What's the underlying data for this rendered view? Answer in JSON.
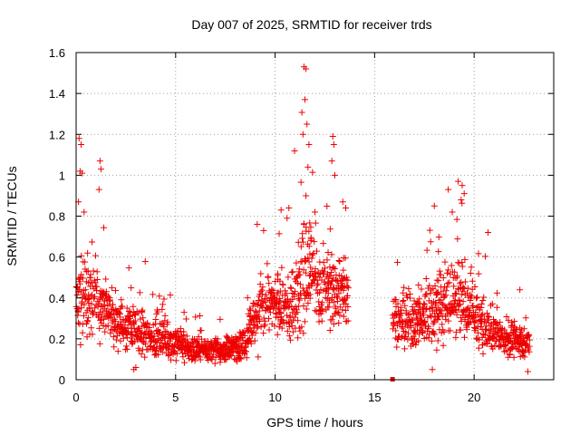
{
  "chart_data": {
    "type": "scatter",
    "title": "Day 007 of 2025, SRMTID for receiver trds",
    "xlabel": "GPS time / hours",
    "ylabel": "SRMTID / TECUs",
    "xlim": [
      0,
      24
    ],
    "ylim": [
      0,
      1.6
    ],
    "xticks": [
      0,
      5,
      10,
      15,
      20
    ],
    "xtick_labels": [
      "0",
      "5",
      "10",
      "15",
      "20"
    ],
    "yticks": [
      0,
      0.2,
      0.4,
      0.6,
      0.8,
      1,
      1.2,
      1.4,
      1.6
    ],
    "ytick_labels": [
      "0",
      "0.2",
      "0.4",
      "0.6",
      "0.8",
      "1",
      "1.2",
      "1.4",
      "1.6"
    ],
    "grid": true,
    "marker": "plus",
    "series_color": "#ee0000",
    "data_gap_hours": [
      13.7,
      15.9
    ],
    "envelope": [
      {
        "t": 0.0,
        "median": 0.4,
        "spread": 0.16
      },
      {
        "t": 0.3,
        "median": 0.45,
        "spread": 0.2
      },
      {
        "t": 0.8,
        "median": 0.4,
        "spread": 0.15
      },
      {
        "t": 1.5,
        "median": 0.33,
        "spread": 0.12
      },
      {
        "t": 2.5,
        "median": 0.25,
        "spread": 0.1
      },
      {
        "t": 3.5,
        "median": 0.22,
        "spread": 0.09
      },
      {
        "t": 4.5,
        "median": 0.2,
        "spread": 0.09
      },
      {
        "t": 5.5,
        "median": 0.15,
        "spread": 0.06
      },
      {
        "t": 6.5,
        "median": 0.15,
        "spread": 0.05
      },
      {
        "t": 7.5,
        "median": 0.14,
        "spread": 0.05
      },
      {
        "t": 8.5,
        "median": 0.18,
        "spread": 0.06
      },
      {
        "t": 9.2,
        "median": 0.35,
        "spread": 0.15
      },
      {
        "t": 10.0,
        "median": 0.38,
        "spread": 0.15
      },
      {
        "t": 10.8,
        "median": 0.3,
        "spread": 0.14
      },
      {
        "t": 11.5,
        "median": 0.55,
        "spread": 0.28
      },
      {
        "t": 12.2,
        "median": 0.45,
        "spread": 0.16
      },
      {
        "t": 13.0,
        "median": 0.4,
        "spread": 0.16
      },
      {
        "t": 13.7,
        "median": 0.45,
        "spread": 0.18
      },
      {
        "t": 15.9,
        "median": 0.3,
        "spread": 0.1
      },
      {
        "t": 17.0,
        "median": 0.28,
        "spread": 0.12
      },
      {
        "t": 18.2,
        "median": 0.35,
        "spread": 0.15
      },
      {
        "t": 19.2,
        "median": 0.4,
        "spread": 0.18
      },
      {
        "t": 20.5,
        "median": 0.25,
        "spread": 0.1
      },
      {
        "t": 21.5,
        "median": 0.2,
        "spread": 0.07
      },
      {
        "t": 22.8,
        "median": 0.18,
        "spread": 0.06
      }
    ],
    "outliers": [
      {
        "x": 0.15,
        "y": 1.18
      },
      {
        "x": 0.25,
        "y": 1.15
      },
      {
        "x": 0.2,
        "y": 1.02
      },
      {
        "x": 0.3,
        "y": 1.01
      },
      {
        "x": 0.12,
        "y": 0.87
      },
      {
        "x": 1.2,
        "y": 1.07
      },
      {
        "x": 1.25,
        "y": 1.03
      },
      {
        "x": 1.15,
        "y": 0.93
      },
      {
        "x": 0.4,
        "y": 0.82
      },
      {
        "x": 9.1,
        "y": 0.76
      },
      {
        "x": 10.3,
        "y": 0.83
      },
      {
        "x": 10.6,
        "y": 0.79
      },
      {
        "x": 11.45,
        "y": 1.53
      },
      {
        "x": 11.55,
        "y": 1.52
      },
      {
        "x": 11.5,
        "y": 1.37
      },
      {
        "x": 11.6,
        "y": 1.25
      },
      {
        "x": 11.4,
        "y": 1.2
      },
      {
        "x": 11.7,
        "y": 1.15
      },
      {
        "x": 11.65,
        "y": 1.04
      },
      {
        "x": 11.55,
        "y": 0.9
      },
      {
        "x": 12.0,
        "y": 0.82
      },
      {
        "x": 12.9,
        "y": 1.19
      },
      {
        "x": 12.95,
        "y": 1.15
      },
      {
        "x": 12.85,
        "y": 1.07
      },
      {
        "x": 13.0,
        "y": 1.0
      },
      {
        "x": 13.4,
        "y": 0.87
      },
      {
        "x": 13.55,
        "y": 0.84
      },
      {
        "x": 18.0,
        "y": 0.85
      },
      {
        "x": 18.7,
        "y": 0.93
      },
      {
        "x": 19.2,
        "y": 0.97
      },
      {
        "x": 19.4,
        "y": 0.95
      },
      {
        "x": 19.5,
        "y": 0.91
      },
      {
        "x": 19.35,
        "y": 0.88
      },
      {
        "x": 18.9,
        "y": 0.82
      },
      {
        "x": 20.7,
        "y": 0.72
      },
      {
        "x": 22.3,
        "y": 0.44
      },
      {
        "x": 2.9,
        "y": 0.05
      },
      {
        "x": 3.0,
        "y": 0.06
      },
      {
        "x": 17.9,
        "y": 0.05
      },
      {
        "x": 22.7,
        "y": 0.04
      }
    ],
    "gap_marker": {
      "x": 15.9,
      "y": 0.0
    }
  }
}
